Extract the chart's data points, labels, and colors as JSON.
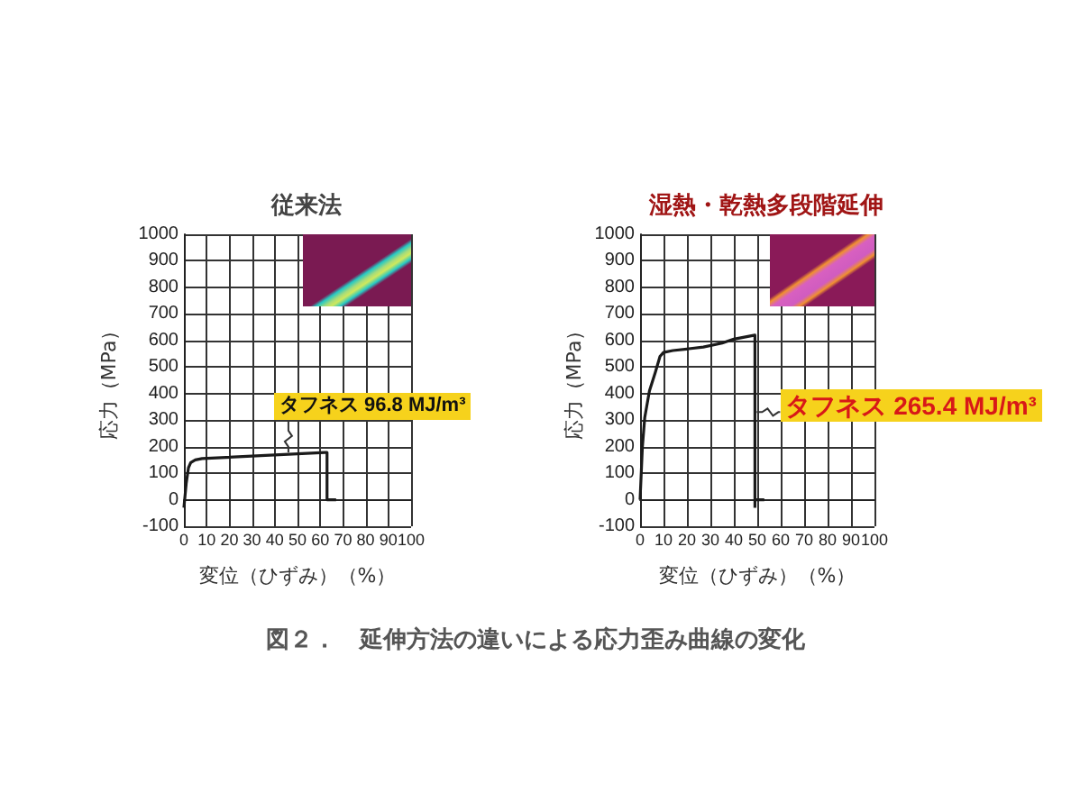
{
  "chart_data": [
    {
      "type": "line",
      "title": "従来法",
      "xlabel": "変位（ひずみ）（%）",
      "ylabel": "応力（MPa）",
      "xlim": [
        0,
        100
      ],
      "xticks": [
        0,
        10,
        20,
        30,
        40,
        50,
        60,
        70,
        80,
        90,
        100
      ],
      "ylim": [
        -100,
        1000
      ],
      "yticks": [
        -100,
        0,
        100,
        200,
        300,
        400,
        500,
        600,
        700,
        800,
        900,
        1000
      ],
      "grid": true,
      "marker": "none",
      "line_style": "solid",
      "series": [
        {
          "color": "#1a1a1a",
          "x": [
            0,
            1,
            2,
            3,
            5,
            8,
            62,
            63,
            63,
            67
          ],
          "values": [
            -30,
            60,
            120,
            140,
            150,
            155,
            178,
            178,
            0,
            0
          ]
        }
      ],
      "annotations": [
        {
          "text": "タフネス 96.8 MJ/m³",
          "x": 46,
          "y": 172
        },
        "図２．　延伸方法の違いによる応力歪み曲線の変化"
      ]
    },
    {
      "type": "line",
      "title": "湿熱・乾熱多段階延伸",
      "xlabel": "変位（ひずみ）（%）",
      "ylabel": "応力（MPa）",
      "xlim": [
        0,
        100
      ],
      "xticks": [
        0,
        10,
        20,
        30,
        40,
        50,
        60,
        70,
        80,
        90,
        100
      ],
      "ylim": [
        -100,
        1000
      ],
      "yticks": [
        -100,
        0,
        100,
        200,
        300,
        400,
        500,
        600,
        700,
        800,
        900,
        1000
      ],
      "grid": true,
      "marker": "none",
      "line_style": "solid",
      "series": [
        {
          "color": "#1a1a1a",
          "x": [
            0,
            1,
            2,
            4,
            6.5,
            8.5,
            10,
            14,
            27,
            35,
            40,
            49,
            49
          ],
          "values": [
            0,
            200,
            310,
            410,
            480,
            540,
            555,
            562,
            575,
            590,
            605,
            620,
            -30
          ]
        },
        {
          "color": "#1a1a1a",
          "x": [
            49,
            53
          ],
          "values": [
            0,
            0
          ]
        }
      ],
      "annotations": [
        {
          "text": "タフネス 265.4 MJ/m³",
          "x": 49,
          "y": 330
        }
      ]
    }
  ]
}
